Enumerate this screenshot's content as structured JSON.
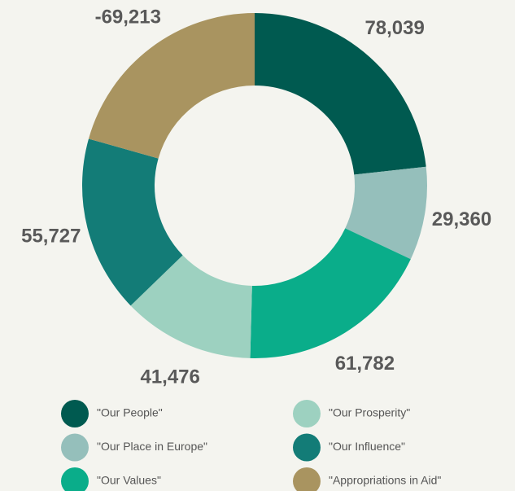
{
  "chart_data": {
    "type": "doughnut",
    "series": [
      {
        "name": "\"Our People\"",
        "color": "#005a50",
        "value": 78039,
        "value_label": "78,039"
      },
      {
        "name": "\"Our Place in Europe\"",
        "color": "#95bfbb",
        "value": 29360,
        "value_label": "29,360"
      },
      {
        "name": "\"Our Values\"",
        "color": "#0aad8a",
        "value": 61782,
        "value_label": "61,782"
      },
      {
        "name": "\"Our Prosperity\"",
        "color": "#9dd1c0",
        "value": 41476,
        "value_label": "41,476"
      },
      {
        "name": "\"Our Influence\"",
        "color": "#137c77",
        "value": 55727,
        "value_label": "55,727"
      },
      {
        "name": "\"Appropriations in Aid\"",
        "color": "#a99460",
        "value": -69213,
        "value_label": "-69,213"
      }
    ]
  }
}
